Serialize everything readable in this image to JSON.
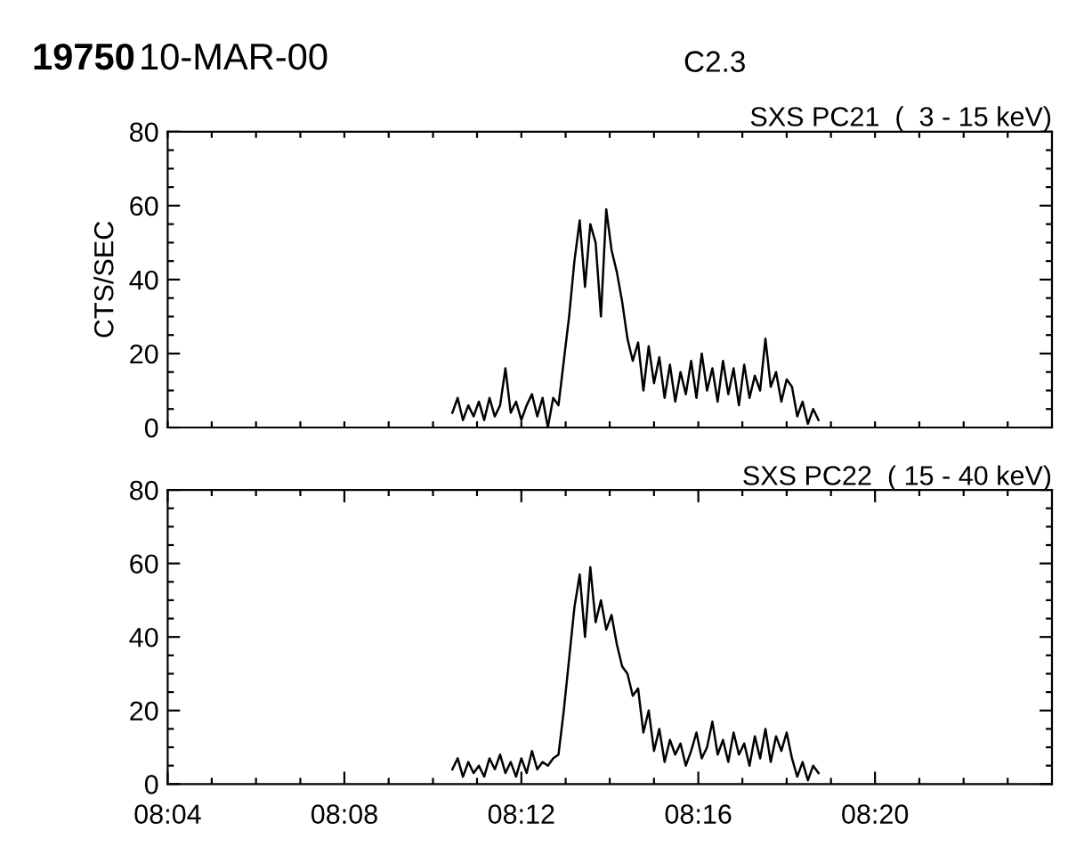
{
  "chart_data": [
    {
      "type": "line",
      "title": "SXS PC21  (  3 - 15 keV)",
      "ylabel": "CTS/SEC",
      "annotations": [
        "19750",
        "10-MAR-00",
        "C2.3"
      ],
      "x": [
        8.174,
        8.176,
        8.178,
        8.18,
        8.182,
        8.184,
        8.186,
        8.188,
        8.19,
        8.192,
        8.194,
        8.196,
        8.198,
        8.2,
        8.202,
        8.204,
        8.206,
        8.208,
        8.21,
        8.212,
        8.214,
        8.216,
        8.218,
        8.22,
        8.222,
        8.224,
        8.226,
        8.228,
        8.23,
        8.232,
        8.234,
        8.236,
        8.238,
        8.24,
        8.242,
        8.244,
        8.246,
        8.248,
        8.25,
        8.252,
        8.254,
        8.256,
        8.258,
        8.26,
        8.262,
        8.264,
        8.266,
        8.268,
        8.27,
        8.272,
        8.274,
        8.276,
        8.278,
        8.28,
        8.282,
        8.284,
        8.286,
        8.288,
        8.29,
        8.292,
        8.294,
        8.296,
        8.298,
        8.3,
        8.302,
        8.304,
        8.306,
        8.308,
        8.31,
        8.312
      ],
      "series": [
        {
          "color": "#000000",
          "values": [
            4,
            8,
            2,
            6,
            3,
            7,
            2,
            8,
            3,
            6,
            16,
            4,
            7,
            2,
            6,
            9,
            3,
            8,
            0,
            8,
            6,
            18,
            30,
            45,
            56,
            38,
            55,
            50,
            30,
            59,
            48,
            42,
            34,
            24,
            18,
            23,
            10,
            22,
            12,
            19,
            8,
            17,
            7,
            15,
            9,
            18,
            8,
            20,
            10,
            16,
            7,
            18,
            9,
            16,
            6,
            17,
            8,
            14,
            10,
            24,
            11,
            15,
            7,
            13,
            11,
            3,
            7,
            1,
            5,
            2
          ]
        }
      ],
      "xlim": [
        8.0667,
        8.4
      ],
      "xticks": [
        {
          "value": 8.0667,
          "label": null
        },
        {
          "value": 8.0833,
          "label": null
        },
        {
          "value": 8.1,
          "label": null
        },
        {
          "value": 8.1167,
          "label": null
        },
        {
          "value": 8.1333,
          "label": null
        },
        {
          "value": 8.15,
          "label": null
        },
        {
          "value": 8.1667,
          "label": null
        },
        {
          "value": 8.1833,
          "label": null
        },
        {
          "value": 8.2,
          "label": null
        },
        {
          "value": 8.2167,
          "label": null
        },
        {
          "value": 8.2333,
          "label": null
        },
        {
          "value": 8.25,
          "label": null
        },
        {
          "value": 8.2667,
          "label": null
        },
        {
          "value": 8.2833,
          "label": null
        },
        {
          "value": 8.3,
          "label": null
        },
        {
          "value": 8.3167,
          "label": null
        },
        {
          "value": 8.3333,
          "label": null
        },
        {
          "value": 8.35,
          "label": null
        },
        {
          "value": 8.3667,
          "label": null
        },
        {
          "value": 8.3833,
          "label": null
        }
      ],
      "ylim": [
        0,
        80
      ],
      "yticks": [
        0,
        {
          "value": 5,
          "label": null
        },
        {
          "value": 10,
          "label": null
        },
        {
          "value": 15,
          "label": null
        },
        20,
        {
          "value": 25,
          "label": null
        },
        {
          "value": 30,
          "label": null
        },
        {
          "value": 35,
          "label": null
        },
        40,
        {
          "value": 45,
          "label": null
        },
        {
          "value": 50,
          "label": null
        },
        {
          "value": 55,
          "label": null
        },
        60,
        {
          "value": 65,
          "label": null
        },
        {
          "value": 70,
          "label": null
        },
        {
          "value": 75,
          "label": null
        },
        80
      ],
      "tick_labels": "y",
      "grid": false
    },
    {
      "type": "line",
      "title": "SXS PC22  ( 15 - 40 keV)",
      "x": [
        8.174,
        8.176,
        8.178,
        8.18,
        8.182,
        8.184,
        8.186,
        8.188,
        8.19,
        8.192,
        8.194,
        8.196,
        8.198,
        8.2,
        8.202,
        8.204,
        8.206,
        8.208,
        8.21,
        8.212,
        8.214,
        8.216,
        8.218,
        8.22,
        8.222,
        8.224,
        8.226,
        8.228,
        8.23,
        8.232,
        8.234,
        8.236,
        8.238,
        8.24,
        8.242,
        8.244,
        8.246,
        8.248,
        8.25,
        8.252,
        8.254,
        8.256,
        8.258,
        8.26,
        8.262,
        8.264,
        8.266,
        8.268,
        8.27,
        8.272,
        8.274,
        8.276,
        8.278,
        8.28,
        8.282,
        8.284,
        8.286,
        8.288,
        8.29,
        8.292,
        8.294,
        8.296,
        8.298,
        8.3,
        8.302,
        8.304,
        8.306,
        8.308,
        8.31,
        8.312
      ],
      "series": [
        {
          "color": "#000000",
          "values": [
            4,
            7,
            2,
            6,
            3,
            5,
            2,
            7,
            4,
            8,
            3,
            6,
            2,
            7,
            3,
            9,
            4,
            6,
            5,
            7,
            8,
            20,
            34,
            48,
            57,
            40,
            59,
            44,
            50,
            42,
            46,
            38,
            32,
            30,
            24,
            26,
            14,
            20,
            9,
            15,
            6,
            12,
            8,
            11,
            5,
            9,
            14,
            7,
            10,
            17,
            8,
            12,
            6,
            14,
            8,
            11,
            5,
            13,
            7,
            15,
            6,
            13,
            9,
            14,
            7,
            2,
            6,
            1,
            5,
            3
          ]
        }
      ],
      "xlim": [
        8.0667,
        8.4
      ],
      "xticks": [
        {
          "value": 8.0667,
          "label": "08:04"
        },
        {
          "value": 8.0833,
          "label": null
        },
        {
          "value": 8.1,
          "label": null
        },
        {
          "value": 8.1167,
          "label": null
        },
        {
          "value": 8.1333,
          "label": "08:08"
        },
        {
          "value": 8.15,
          "label": null
        },
        {
          "value": 8.1667,
          "label": null
        },
        {
          "value": 8.1833,
          "label": null
        },
        {
          "value": 8.2,
          "label": "08:12"
        },
        {
          "value": 8.2167,
          "label": null
        },
        {
          "value": 8.2333,
          "label": null
        },
        {
          "value": 8.25,
          "label": null
        },
        {
          "value": 8.2667,
          "label": "08:16"
        },
        {
          "value": 8.2833,
          "label": null
        },
        {
          "value": 8.3,
          "label": null
        },
        {
          "value": 8.3167,
          "label": null
        },
        {
          "value": 8.3333,
          "label": "08:20"
        },
        {
          "value": 8.35,
          "label": null
        },
        {
          "value": 8.3667,
          "label": null
        },
        {
          "value": 8.3833,
          "label": null
        }
      ],
      "ylim": [
        0,
        80
      ],
      "yticks": [
        0,
        {
          "value": 5,
          "label": null
        },
        {
          "value": 10,
          "label": null
        },
        {
          "value": 15,
          "label": null
        },
        20,
        {
          "value": 25,
          "label": null
        },
        {
          "value": 30,
          "label": null
        },
        {
          "value": 35,
          "label": null
        },
        40,
        {
          "value": 45,
          "label": null
        },
        {
          "value": 50,
          "label": null
        },
        {
          "value": 55,
          "label": null
        },
        60,
        {
          "value": 65,
          "label": null
        },
        {
          "value": 70,
          "label": null
        },
        {
          "value": 75,
          "label": null
        },
        80
      ],
      "grid": false
    }
  ]
}
